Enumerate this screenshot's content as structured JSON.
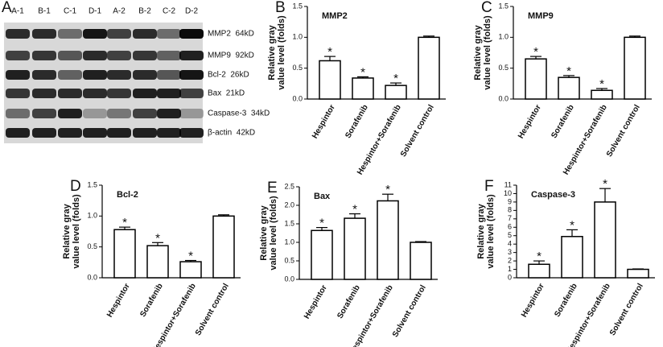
{
  "blot": {
    "label": "A",
    "lanes": [
      "A-1",
      "B-1",
      "C-1",
      "D-1",
      "A-2",
      "B-2",
      "C-2",
      "D-2"
    ],
    "bands": [
      "MMP2  64kD",
      "MMP9  92kD",
      "Bcl-2  26kD",
      "Bax  21kD",
      "Caspase-3  34kD",
      "β-actin  42kD"
    ]
  },
  "chart_data": [
    {
      "type": "bar",
      "label": "B",
      "title": "MMP2",
      "ylabel": [
        "Relative gray",
        "value level (folds)"
      ],
      "categories": [
        "Hespintor",
        "Sorafenib",
        "Hespintor+Sorafenib",
        "Solvent control"
      ],
      "values": [
        0.62,
        0.34,
        0.22,
        1.0
      ],
      "errors": [
        0.07,
        0.02,
        0.04,
        0.02
      ],
      "annotations": [
        "*",
        "*",
        "*",
        null
      ],
      "ylim": [
        0,
        1.5
      ],
      "yticks": [
        {
          "value": 0,
          "label": "0.0"
        },
        0.5,
        {
          "value": 1,
          "label": "1.0"
        },
        1.5
      ],
      "color": "#ffffff"
    },
    {
      "type": "bar",
      "label": "C",
      "title": "MMP9",
      "ylabel": [
        "Relative gray",
        "value level (folds)"
      ],
      "categories": [
        "Hespintor",
        "Sorafenib",
        "Hespintor+Sorafenib",
        "Solvent control"
      ],
      "values": [
        0.65,
        0.35,
        0.14,
        1.0
      ],
      "errors": [
        0.04,
        0.03,
        0.03,
        0.02
      ],
      "annotations": [
        "*",
        "*",
        "*",
        null
      ],
      "ylim": [
        0,
        1.5
      ],
      "yticks": [
        {
          "value": 0,
          "label": "0.0"
        },
        0.5,
        {
          "value": 1,
          "label": "1.0"
        },
        1.5
      ],
      "color": "#ffffff"
    },
    {
      "type": "bar",
      "label": "D",
      "title": "Bcl-2",
      "ylabel": [
        "Relative gray",
        "value level (folds)"
      ],
      "categories": [
        "Hespintor",
        "Sorafenib",
        "Hespintor+Sorafenib",
        "Solvent control"
      ],
      "values": [
        0.78,
        0.52,
        0.26,
        1.0
      ],
      "errors": [
        0.04,
        0.05,
        0.02,
        0.02
      ],
      "annotations": [
        "*",
        "*",
        "*",
        null
      ],
      "ylim": [
        0,
        1.5
      ],
      "yticks": [
        {
          "value": 0,
          "label": "0.0"
        },
        0.5,
        {
          "value": 1,
          "label": "1.0"
        },
        1.5
      ],
      "color": "#ffffff"
    },
    {
      "type": "bar",
      "label": "E",
      "title": "Bax",
      "ylabel": [
        "Relative gray",
        "value level (folds)"
      ],
      "categories": [
        "Hespintor",
        "Sorafenib",
        "Hespintor+Sorafenib",
        "Solvent control"
      ],
      "values": [
        1.32,
        1.65,
        2.12,
        1.0
      ],
      "errors": [
        0.08,
        0.12,
        0.18,
        0.02
      ],
      "annotations": [
        "*",
        "*",
        "*",
        null
      ],
      "ylim": [
        0,
        2.5
      ],
      "yticks": [
        {
          "value": 0,
          "label": "0.0"
        },
        0.5,
        {
          "value": 1,
          "label": "1.0"
        },
        1.5,
        {
          "value": 2,
          "label": "2.0"
        },
        2.5
      ],
      "color": "#ffffff"
    },
    {
      "type": "bar",
      "label": "F",
      "title": "Caspase-3",
      "ylabel": [
        "Relative gray",
        "value level (folds)"
      ],
      "categories": [
        "Hespintor",
        "Sorafenib",
        "Hespintor+Sorafenib",
        "Solvent control"
      ],
      "values": [
        1.6,
        4.9,
        9.0,
        1.0
      ],
      "errors": [
        0.4,
        0.8,
        1.6,
        0.05
      ],
      "annotations": [
        "*",
        "*",
        "*",
        null
      ],
      "ylim": [
        0,
        11
      ],
      "yticks": [
        0,
        1,
        2,
        3,
        4,
        5,
        6,
        7,
        8,
        9,
        10,
        11
      ],
      "color": "#ffffff"
    }
  ]
}
